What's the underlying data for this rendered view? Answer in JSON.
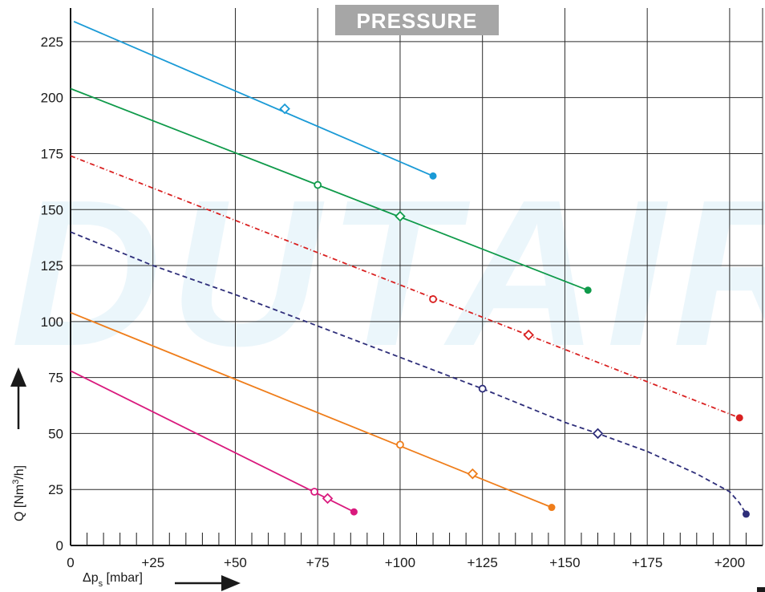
{
  "chart_data": {
    "type": "line",
    "title": "PRESSURE",
    "watermark": "DUTAIR",
    "xlabel_main": "Δp",
    "xlabel_sub": "s",
    "xlabel_unit": " [mbar]",
    "ylabel_main": "Q [Nm",
    "ylabel_sup": "3",
    "ylabel_unit": "/h]",
    "xlim": [
      0,
      210
    ],
    "ylim": [
      0,
      240
    ],
    "x_ticks": [
      0,
      25,
      50,
      75,
      100,
      125,
      150,
      175,
      200
    ],
    "x_tick_labels": [
      "0",
      "+25",
      "+50",
      "+75",
      "+100",
      "+125",
      "+150",
      "+175",
      "+200"
    ],
    "y_ticks": [
      0,
      25,
      50,
      75,
      100,
      125,
      150,
      175,
      200,
      225
    ],
    "y_tick_labels": [
      "0",
      "25",
      "50",
      "75",
      "100",
      "125",
      "150",
      "175",
      "200",
      "225"
    ],
    "grid": true,
    "series": [
      {
        "color": "#1a9ad6",
        "dash": "",
        "x": [
          1,
          110
        ],
        "y": [
          234,
          165
        ],
        "markers": [
          {
            "x": 65,
            "y": 195,
            "shape": "diamond"
          },
          {
            "x": 110,
            "y": 165,
            "shape": "dot"
          }
        ]
      },
      {
        "color": "#0f9a4a",
        "dash": "",
        "x": [
          0,
          157
        ],
        "y": [
          204,
          114
        ],
        "markers": [
          {
            "x": 75,
            "y": 161,
            "shape": "circle"
          },
          {
            "x": 100,
            "y": 147,
            "shape": "diamond"
          },
          {
            "x": 157,
            "y": 114,
            "shape": "dot"
          }
        ]
      },
      {
        "color": "#d92020",
        "dash": "6 3 1 3",
        "x": [
          0,
          203
        ],
        "y": [
          174,
          57
        ],
        "markers": [
          {
            "x": 110,
            "y": 110,
            "shape": "circle"
          },
          {
            "x": 139,
            "y": 94,
            "shape": "diamond"
          },
          {
            "x": 203,
            "y": 57,
            "shape": "dot"
          }
        ]
      },
      {
        "color": "#2e2e7a",
        "dash": "6 4",
        "x": [
          0,
          25,
          50,
          75,
          100,
          125,
          150,
          160,
          175,
          190,
          200,
          203,
          205
        ],
        "y": [
          140,
          125,
          112,
          98,
          84,
          70,
          55,
          50,
          42,
          32,
          24,
          19,
          14
        ],
        "markers": [
          {
            "x": 125,
            "y": 70,
            "shape": "circle"
          },
          {
            "x": 160,
            "y": 50,
            "shape": "diamond"
          },
          {
            "x": 205,
            "y": 14,
            "shape": "dot"
          }
        ]
      },
      {
        "color": "#ef7d1a",
        "dash": "",
        "x": [
          0,
          146
        ],
        "y": [
          104,
          17
        ],
        "markers": [
          {
            "x": 100,
            "y": 45,
            "shape": "circle"
          },
          {
            "x": 122,
            "y": 32,
            "shape": "diamond"
          },
          {
            "x": 146,
            "y": 17,
            "shape": "dot"
          }
        ]
      },
      {
        "color": "#d9197d",
        "dash": "",
        "x": [
          0,
          86
        ],
        "y": [
          78,
          15
        ],
        "markers": [
          {
            "x": 74,
            "y": 24,
            "shape": "circle"
          },
          {
            "x": 78,
            "y": 21,
            "shape": "diamond"
          },
          {
            "x": 86,
            "y": 15,
            "shape": "dot"
          }
        ]
      }
    ]
  }
}
